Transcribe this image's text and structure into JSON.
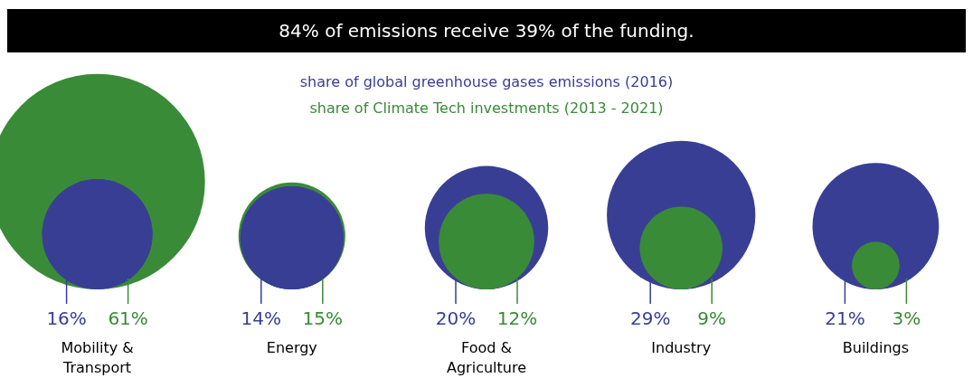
{
  "chart_data": {
    "type": "other",
    "title": "84% of emissions receive 39% of the funding.",
    "categories": [
      "Mobility & Transport",
      "Energy",
      "Food & Agriculture",
      "Industry",
      "Buildings"
    ],
    "series": [
      {
        "name": "share of global greenhouse gases emissions (2016)",
        "color": "#393e95",
        "values": [
          16,
          14,
          20,
          29,
          21
        ],
        "value_labels": [
          "16%",
          "14%",
          "20%",
          "29%",
          "21%"
        ]
      },
      {
        "name": "share of Climate Tech investments (2013 - 2021)",
        "color": "#3a8b37",
        "values": [
          61,
          15,
          12,
          9,
          3
        ],
        "value_labels": [
          "61%",
          "15%",
          "12%",
          "9%",
          "3%"
        ]
      }
    ]
  }
}
